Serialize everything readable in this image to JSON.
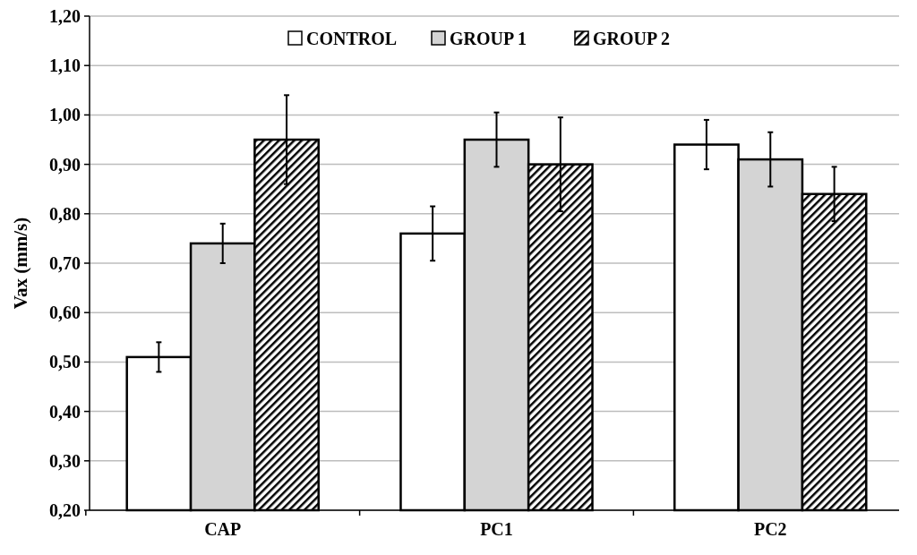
{
  "chart_data": {
    "type": "bar",
    "ylabel": "Vax (mm/s)",
    "categories": [
      "CAP",
      "PC1",
      "PC2"
    ],
    "series": [
      {
        "name": "CONTROL",
        "color": "#ffffff",
        "values": [
          0.51,
          0.76,
          0.94
        ],
        "errors": [
          0.03,
          0.055,
          0.05
        ]
      },
      {
        "name": "GROUP 1",
        "color": "#d4d4d4",
        "values": [
          0.74,
          0.95,
          0.91
        ],
        "errors": [
          0.04,
          0.055,
          0.055
        ]
      },
      {
        "name": "GROUP 2",
        "color": "#000000",
        "values": [
          0.95,
          0.9,
          0.84
        ],
        "errors": [
          0.09,
          0.095,
          0.055
        ]
      }
    ],
    "ylim": [
      0.2,
      1.2
    ],
    "yticks": [
      {
        "value": 0.2,
        "label": "0,20"
      },
      {
        "value": 0.3,
        "label": "0,30"
      },
      {
        "value": 0.4,
        "label": "0,40"
      },
      {
        "value": 0.5,
        "label": "0,50"
      },
      {
        "value": 0.6,
        "label": "0,60"
      },
      {
        "value": 0.7,
        "label": "0,70"
      },
      {
        "value": 0.8,
        "label": "0,80"
      },
      {
        "value": 0.9,
        "label": "0,90"
      },
      {
        "value": 1.0,
        "label": "1,00"
      },
      {
        "value": 1.1,
        "label": "1,10"
      },
      {
        "value": 1.2,
        "label": "1,20"
      }
    ],
    "grid": "y",
    "legend": "top"
  }
}
